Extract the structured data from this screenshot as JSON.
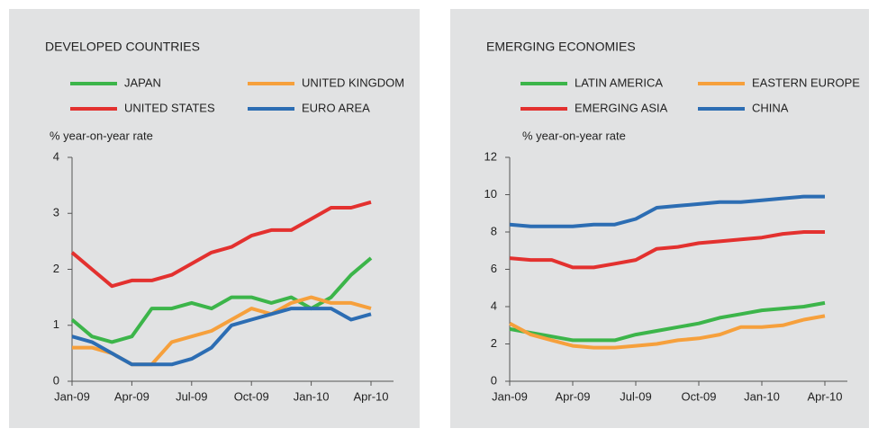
{
  "chart_data": [
    {
      "type": "line",
      "title": "DEVELOPED COUNTRIES",
      "y_label": "% year-on-year rate",
      "categories": [
        "Jan-09",
        null,
        null,
        "Apr-09",
        null,
        null,
        "Jul-09",
        null,
        null,
        "Oct-09",
        null,
        null,
        "Jan-10",
        null,
        null,
        "Apr-10"
      ],
      "ylim": [
        0,
        4
      ],
      "yticks": [
        0,
        1,
        2,
        3,
        4
      ],
      "series": [
        {
          "name": "JAPAN",
          "color": "#3cb54a",
          "values": [
            1.1,
            0.8,
            0.7,
            0.8,
            1.3,
            1.3,
            1.4,
            1.3,
            1.5,
            1.5,
            1.4,
            1.5,
            1.3,
            1.5,
            1.9,
            2.2
          ]
        },
        {
          "name": "UNITED KINGDOM",
          "color": "#f6a03c",
          "values": [
            0.6,
            0.6,
            0.5,
            0.3,
            0.3,
            0.7,
            0.8,
            0.9,
            1.1,
            1.3,
            1.2,
            1.4,
            1.5,
            1.4,
            1.4,
            1.3
          ]
        },
        {
          "name": "UNITED STATES",
          "color": "#e3312f",
          "values": [
            2.3,
            2.0,
            1.7,
            1.8,
            1.8,
            1.9,
            2.1,
            2.3,
            2.4,
            2.6,
            2.7,
            2.7,
            2.9,
            3.1,
            3.1,
            3.2
          ]
        },
        {
          "name": "EURO AREA",
          "color": "#2c6db3",
          "values": [
            0.8,
            0.7,
            0.5,
            0.3,
            0.3,
            0.3,
            0.4,
            0.6,
            1.0,
            1.1,
            1.2,
            1.3,
            1.3,
            1.3,
            1.1,
            1.2
          ]
        }
      ]
    },
    {
      "type": "line",
      "title": "EMERGING ECONOMIES",
      "y_label": "% year-on-year rate",
      "categories": [
        "Jan-09",
        null,
        null,
        "Apr-09",
        null,
        null,
        "Jul-09",
        null,
        null,
        "Oct-09",
        null,
        null,
        "Jan-10",
        null,
        null,
        "Apr-10"
      ],
      "ylim": [
        0,
        12
      ],
      "yticks": [
        0,
        2,
        4,
        6,
        8,
        10,
        12
      ],
      "series": [
        {
          "name": "LATIN AMERICA",
          "color": "#3cb54a",
          "values": [
            2.8,
            2.6,
            2.4,
            2.2,
            2.2,
            2.2,
            2.5,
            2.7,
            2.9,
            3.1,
            3.4,
            3.6,
            3.8,
            3.9,
            4.0,
            4.2
          ]
        },
        {
          "name": "EASTERN EUROPE",
          "color": "#f6a03c",
          "values": [
            3.1,
            2.5,
            2.2,
            1.9,
            1.8,
            1.8,
            1.9,
            2.0,
            2.2,
            2.3,
            2.5,
            2.9,
            2.9,
            3.0,
            3.3,
            3.5
          ]
        },
        {
          "name": "EMERGING ASIA",
          "color": "#e3312f",
          "values": [
            6.6,
            6.5,
            6.5,
            6.1,
            6.1,
            6.3,
            6.5,
            7.1,
            7.2,
            7.4,
            7.5,
            7.6,
            7.7,
            7.9,
            8.0,
            8.0
          ]
        },
        {
          "name": "CHINA",
          "color": "#2c6db3",
          "values": [
            8.4,
            8.3,
            8.3,
            8.3,
            8.4,
            8.4,
            8.7,
            9.3,
            9.4,
            9.5,
            9.6,
            9.6,
            9.7,
            9.8,
            9.9,
            9.9
          ]
        }
      ]
    }
  ]
}
